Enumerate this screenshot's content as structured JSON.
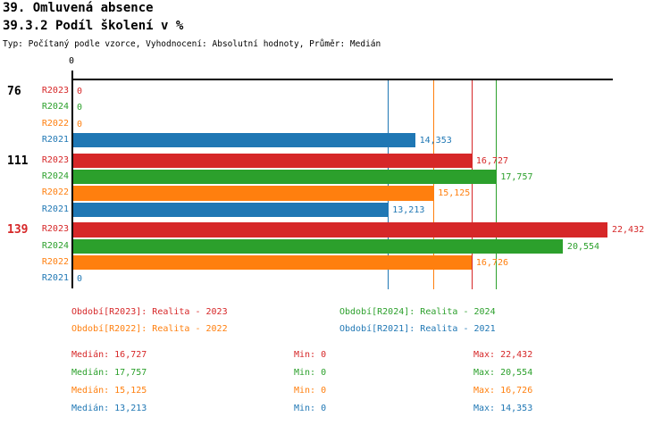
{
  "header": {
    "title_line1": "39. Omluvená absence",
    "title_line2": "39.3.2 Podíl školení v %",
    "meta_line": "Typ: Počítaný podle vzorce, Vyhodnocení: Absolutní hodnoty, Průměr: Medián"
  },
  "chart_data": {
    "type": "bar",
    "orientation": "horizontal",
    "x_axis": {
      "tick_labels": [
        "0"
      ],
      "min": 0,
      "max": 22432,
      "grid": false
    },
    "series_order": [
      "R2023",
      "R2024",
      "R2022",
      "R2021"
    ],
    "series_colors": {
      "R2023": "#d62728",
      "R2024": "#2ca02c",
      "R2022": "#ff7f0e",
      "R2021": "#1f77b4"
    },
    "groups": [
      {
        "label": "76",
        "label_color": "#000000",
        "bars": [
          {
            "series": "R2023",
            "value": 0,
            "display": "0"
          },
          {
            "series": "R2024",
            "value": 0,
            "display": "0"
          },
          {
            "series": "R2022",
            "value": 0,
            "display": "0"
          },
          {
            "series": "R2021",
            "value": 14353,
            "display": "14,353"
          }
        ]
      },
      {
        "label": "111",
        "label_color": "#000000",
        "bars": [
          {
            "series": "R2023",
            "value": 16727,
            "display": "16,727"
          },
          {
            "series": "R2024",
            "value": 17757,
            "display": "17,757"
          },
          {
            "series": "R2022",
            "value": 15125,
            "display": "15,125"
          },
          {
            "series": "R2021",
            "value": 13213,
            "display": "13,213"
          }
        ]
      },
      {
        "label": "139",
        "label_color": "#d62728",
        "bars": [
          {
            "series": "R2023",
            "value": 22432,
            "display": "22,432"
          },
          {
            "series": "R2024",
            "value": 20554,
            "display": "20,554"
          },
          {
            "series": "R2022",
            "value": 16726,
            "display": "16,726"
          },
          {
            "series": "R2021",
            "value": 0,
            "display": "0"
          }
        ]
      }
    ],
    "median_lines": [
      {
        "series": "R2023",
        "value": 16727
      },
      {
        "series": "R2024",
        "value": 17757
      },
      {
        "series": "R2022",
        "value": 15125
      },
      {
        "series": "R2021",
        "value": 13213
      }
    ]
  },
  "legend": {
    "items": [
      {
        "series": "R2023",
        "label": "Období[R2023]: Realita - 2023"
      },
      {
        "series": "R2024",
        "label": "Období[R2024]: Realita - 2024"
      },
      {
        "series": "R2022",
        "label": "Období[R2022]: Realita - 2022"
      },
      {
        "series": "R2021",
        "label": "Období[R2021]: Realita - 2021"
      }
    ]
  },
  "stats": {
    "rows": [
      {
        "series": "R2023",
        "median": "Medián: 16,727",
        "min": "Min: 0",
        "max": "Max: 22,432"
      },
      {
        "series": "R2024",
        "median": "Medián: 17,757",
        "min": "Min: 0",
        "max": "Max: 20,554"
      },
      {
        "series": "R2022",
        "median": "Medián: 15,125",
        "min": "Min: 0",
        "max": "Max: 16,726"
      },
      {
        "series": "R2021",
        "median": "Medián: 13,213",
        "min": "Min: 0",
        "max": "Max: 14,353"
      }
    ]
  }
}
